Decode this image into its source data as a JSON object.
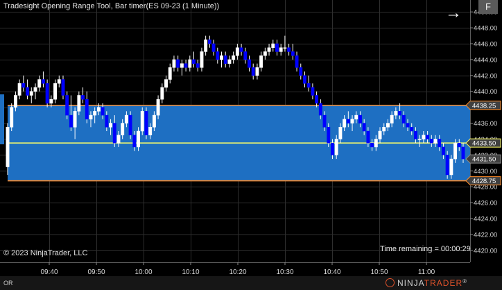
{
  "title": "Tradesight Opening Range Tool, Bar timer(ES 09-23 (1 Minute))",
  "copyright": "© 2023 NinjaTrader, LLC",
  "timer_text": "Time remaining = 00:00:29",
  "toolbar": {
    "f_label": "F",
    "nav_arrow": "arrow-right-icon"
  },
  "status": {
    "or_label": "OR"
  },
  "brand": {
    "part1": "NINJA",
    "part2": "TRADER",
    "mark": "®"
  },
  "colors": {
    "background": "#000000",
    "range_fill": "#1e6fc2",
    "range_border": "#ff8c28",
    "mid_line": "#ffff66",
    "up_candle": "#ffffff",
    "down_candle": "#0000ff",
    "grid": "#2e2e2e",
    "price_marker_bg": "#404040"
  },
  "chart_data": {
    "type": "candlestick",
    "instrument": "ES 09-23",
    "timeframe": "1 Minute",
    "ylim": [
      4418.5,
      4451.5
    ],
    "y_ticks": [
      "4420.00",
      "4422.00",
      "4424.00",
      "4426.00",
      "4428.00",
      "4430.00",
      "4432.00",
      "4434.00",
      "4436.00",
      "4438.00",
      "4440.00",
      "4442.00",
      "4444.00",
      "4446.00",
      "4448.00",
      "4450.00"
    ],
    "x_tick_labels": [
      "09:40",
      "09:50",
      "10:00",
      "10:10",
      "10:20",
      "10:30",
      "10:40",
      "10:50",
      "11:00"
    ],
    "x_tick_minutes": [
      40,
      50,
      60,
      70,
      80,
      90,
      100,
      110,
      120
    ],
    "opening_range": {
      "high": 4438.25,
      "mid": 4433.5,
      "low": 4428.75
    },
    "price_markers": [
      {
        "label": "4438.25",
        "value": 4438.25
      },
      {
        "label": "4433.50",
        "value": 4433.5
      },
      {
        "label": "4431.50",
        "value": 4431.5
      },
      {
        "label": "4428.75",
        "value": 4428.75
      }
    ],
    "grid": true,
    "candles_ohlc": [
      [
        4430.5,
        4436.0,
        4429.5,
        4435.5
      ],
      [
        4435.5,
        4438.5,
        4435.0,
        4438.0
      ],
      [
        4438.0,
        4440.0,
        4437.5,
        4439.5
      ],
      [
        4439.5,
        4441.5,
        4439.0,
        4441.0
      ],
      [
        4441.0,
        4442.0,
        4440.0,
        4440.5
      ],
      [
        4440.5,
        4441.5,
        4439.0,
        4439.5
      ],
      [
        4439.5,
        4440.5,
        4438.5,
        4440.0
      ],
      [
        4440.0,
        4441.0,
        4439.0,
        4440.5
      ],
      [
        4440.5,
        4442.0,
        4440.0,
        4441.5
      ],
      [
        4441.5,
        4442.5,
        4440.5,
        4441.0
      ],
      [
        4441.0,
        4441.5,
        4438.0,
        4438.5
      ],
      [
        4438.5,
        4439.5,
        4438.0,
        4439.0
      ],
      [
        4439.0,
        4441.5,
        4438.5,
        4441.0
      ],
      [
        4441.0,
        4442.0,
        4440.5,
        4441.5
      ],
      [
        4441.5,
        4442.0,
        4439.0,
        4439.5
      ],
      [
        4439.5,
        4440.0,
        4436.5,
        4437.0
      ],
      [
        4437.0,
        4439.5,
        4435.0,
        4435.5
      ],
      [
        4435.5,
        4438.0,
        4434.0,
        4437.5
      ],
      [
        4437.5,
        4440.0,
        4437.0,
        4439.5
      ],
      [
        4439.5,
        4440.5,
        4438.5,
        4439.0
      ],
      [
        4439.0,
        4440.0,
        4436.0,
        4436.5
      ],
      [
        4436.5,
        4437.5,
        4435.5,
        4437.0
      ],
      [
        4437.0,
        4438.0,
        4436.0,
        4437.5
      ],
      [
        4437.5,
        4438.5,
        4437.0,
        4438.0
      ],
      [
        4438.0,
        4438.5,
        4436.5,
        4437.0
      ],
      [
        4437.0,
        4437.5,
        4435.0,
        4435.5
      ],
      [
        4435.5,
        4436.5,
        4434.5,
        4436.0
      ],
      [
        4436.0,
        4437.0,
        4433.0,
        4433.5
      ],
      [
        4433.5,
        4435.0,
        4433.0,
        4434.5
      ],
      [
        4434.5,
        4436.5,
        4434.0,
        4436.0
      ],
      [
        4436.0,
        4437.5,
        4435.5,
        4437.0
      ],
      [
        4437.0,
        4437.5,
        4434.0,
        4434.5
      ],
      [
        4434.5,
        4435.0,
        4432.5,
        4433.0
      ],
      [
        4433.0,
        4435.5,
        4432.5,
        4435.0
      ],
      [
        4435.0,
        4438.0,
        4434.5,
        4437.5
      ],
      [
        4437.5,
        4438.0,
        4434.0,
        4434.5
      ],
      [
        4434.5,
        4436.0,
        4434.0,
        4435.5
      ],
      [
        4435.5,
        4437.5,
        4435.0,
        4437.0
      ],
      [
        4437.0,
        4439.5,
        4436.5,
        4439.0
      ],
      [
        4439.0,
        4441.0,
        4438.5,
        4440.5
      ],
      [
        4440.5,
        4442.0,
        4440.0,
        4441.5
      ],
      [
        4441.5,
        4443.5,
        4441.0,
        4443.0
      ],
      [
        4443.0,
        4444.5,
        4442.5,
        4444.0
      ],
      [
        4444.0,
        4444.5,
        4442.5,
        4443.0
      ],
      [
        4443.0,
        4444.0,
        4442.0,
        4443.5
      ],
      [
        4443.5,
        4444.0,
        4442.5,
        4443.0
      ],
      [
        4443.0,
        4444.5,
        4442.5,
        4444.0
      ],
      [
        4444.0,
        4445.0,
        4443.0,
        4443.5
      ],
      [
        4443.5,
        4444.0,
        4442.5,
        4443.0
      ],
      [
        4443.0,
        4445.5,
        4442.5,
        4445.0
      ],
      [
        4445.0,
        4447.0,
        4444.5,
        4446.5
      ],
      [
        4446.5,
        4447.0,
        4445.5,
        4446.0
      ],
      [
        4446.0,
        4446.5,
        4444.5,
        4445.0
      ],
      [
        4445.0,
        4445.5,
        4443.5,
        4444.0
      ],
      [
        4444.0,
        4445.0,
        4443.0,
        4444.5
      ],
      [
        4444.5,
        4445.0,
        4443.0,
        4443.5
      ],
      [
        4443.5,
        4444.5,
        4443.0,
        4444.0
      ],
      [
        4444.0,
        4445.0,
        4443.5,
        4444.5
      ],
      [
        4444.5,
        4446.0,
        4444.0,
        4445.5
      ],
      [
        4445.5,
        4446.0,
        4444.5,
        4445.0
      ],
      [
        4445.0,
        4445.5,
        4443.5,
        4444.0
      ],
      [
        4444.0,
        4444.5,
        4442.5,
        4443.0
      ],
      [
        4443.0,
        4443.5,
        4441.5,
        4442.0
      ],
      [
        4442.0,
        4443.5,
        4441.5,
        4443.0
      ],
      [
        4443.0,
        4445.0,
        4442.5,
        4444.5
      ],
      [
        4444.5,
        4445.5,
        4444.0,
        4445.0
      ],
      [
        4445.0,
        4446.0,
        4444.5,
        4445.5
      ],
      [
        4445.5,
        4446.5,
        4445.0,
        4446.0
      ],
      [
        4446.0,
        4446.5,
        4444.5,
        4445.0
      ],
      [
        4445.0,
        4446.0,
        4444.5,
        4445.5
      ],
      [
        4445.5,
        4447.0,
        4445.0,
        4445.5
      ],
      [
        4445.5,
        4446.0,
        4444.5,
        4445.0
      ],
      [
        4445.0,
        4446.0,
        4444.0,
        4444.5
      ],
      [
        4444.5,
        4445.0,
        4442.5,
        4443.0
      ],
      [
        4443.0,
        4443.5,
        4441.5,
        4442.0
      ],
      [
        4442.0,
        4442.5,
        4440.5,
        4441.0
      ],
      [
        4441.0,
        4442.0,
        4440.0,
        4440.5
      ],
      [
        4440.5,
        4441.0,
        4439.0,
        4439.5
      ],
      [
        4439.5,
        4440.0,
        4438.0,
        4438.5
      ],
      [
        4438.5,
        4439.0,
        4436.5,
        4437.0
      ],
      [
        4437.0,
        4437.5,
        4435.0,
        4435.5
      ],
      [
        4435.5,
        4436.0,
        4433.0,
        4433.5
      ],
      [
        4433.5,
        4434.0,
        4431.5,
        4432.0
      ],
      [
        4432.0,
        4434.5,
        4431.5,
        4434.0
      ],
      [
        4434.0,
        4436.0,
        4433.5,
        4435.5
      ],
      [
        4435.5,
        4437.0,
        4435.0,
        4436.5
      ],
      [
        4436.5,
        4437.5,
        4435.5,
        4436.0
      ],
      [
        4436.0,
        4437.0,
        4435.0,
        4436.5
      ],
      [
        4436.5,
        4437.5,
        4436.0,
        4437.0
      ],
      [
        4437.0,
        4437.5,
        4435.5,
        4436.0
      ],
      [
        4436.0,
        4436.5,
        4434.5,
        4435.0
      ],
      [
        4435.0,
        4435.5,
        4433.0,
        4433.5
      ],
      [
        4433.5,
        4434.0,
        4432.5,
        4433.0
      ],
      [
        4433.0,
        4434.5,
        4432.5,
        4434.0
      ],
      [
        4434.0,
        4435.5,
        4433.5,
        4435.0
      ],
      [
        4435.0,
        4436.0,
        4434.5,
        4435.5
      ],
      [
        4435.5,
        4436.5,
        4435.0,
        4436.0
      ],
      [
        4436.0,
        4437.5,
        4435.5,
        4437.0
      ],
      [
        4437.0,
        4438.0,
        4436.5,
        4437.5
      ],
      [
        4437.5,
        4438.5,
        4436.5,
        4437.0
      ],
      [
        4437.0,
        4437.5,
        4435.5,
        4436.0
      ],
      [
        4436.0,
        4436.5,
        4435.0,
        4435.5
      ],
      [
        4435.5,
        4436.0,
        4434.5,
        4435.0
      ],
      [
        4435.0,
        4435.5,
        4433.5,
        4434.0
      ],
      [
        4434.0,
        4434.5,
        4433.0,
        4434.0
      ],
      [
        4434.0,
        4435.0,
        4433.5,
        4434.5
      ],
      [
        4434.5,
        4435.0,
        4433.5,
        4434.0
      ],
      [
        4434.0,
        4434.5,
        4433.0,
        4433.5
      ],
      [
        4433.5,
        4434.5,
        4433.0,
        4434.0
      ],
      [
        4434.0,
        4434.5,
        4432.5,
        4433.0
      ],
      [
        4433.0,
        4433.5,
        4431.5,
        4432.0
      ],
      [
        4432.0,
        4432.5,
        4429.0,
        4429.5
      ],
      [
        4429.5,
        4432.0,
        4429.0,
        4431.5
      ],
      [
        4431.5,
        4434.0,
        4431.0,
        4433.5
      ],
      [
        4433.5,
        4434.0,
        4432.5,
        4433.0
      ],
      [
        4433.0,
        4433.5,
        4431.0,
        4431.5
      ]
    ]
  }
}
